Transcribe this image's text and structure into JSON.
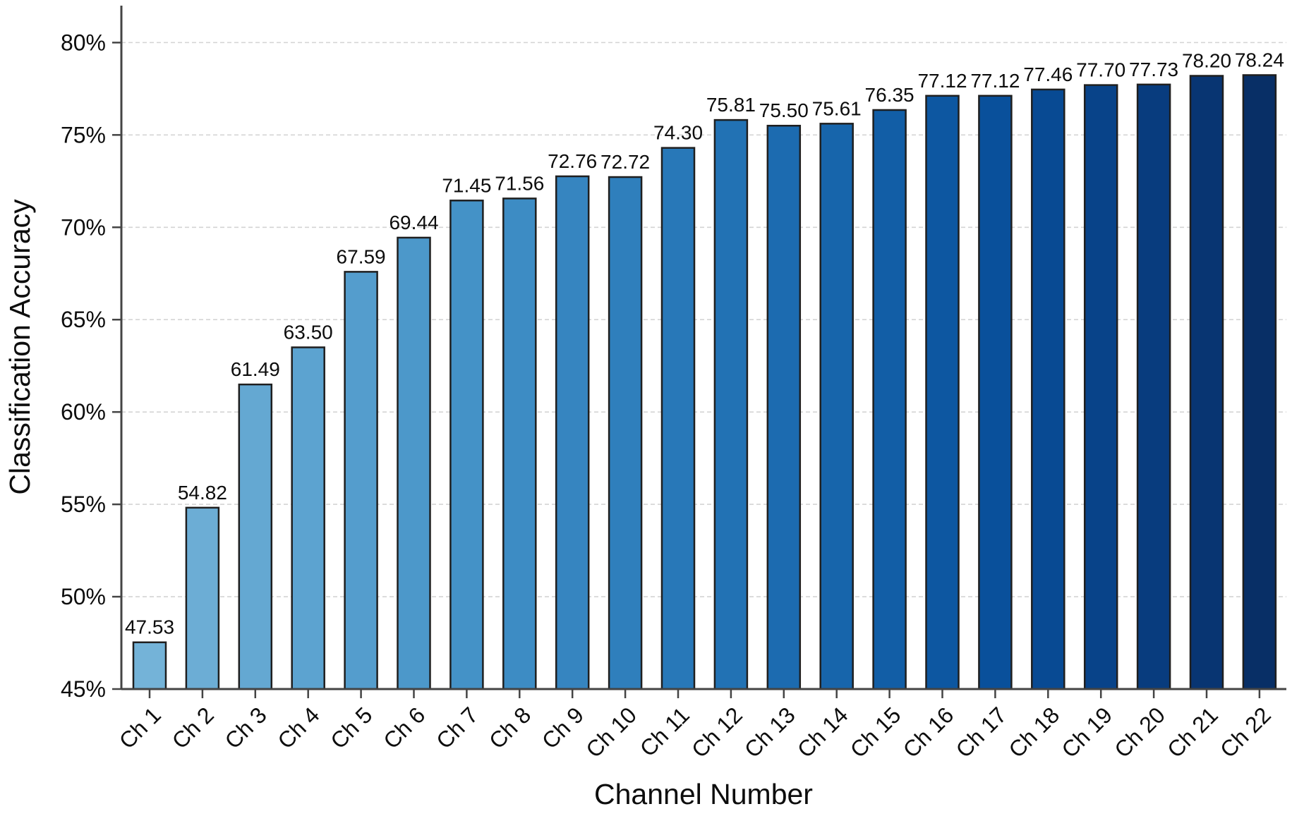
{
  "chart_data": {
    "type": "bar",
    "title": "",
    "xlabel": "Channel Number",
    "ylabel": "Classification Accuracy",
    "categories": [
      "Ch 1",
      "Ch 2",
      "Ch 3",
      "Ch 4",
      "Ch 5",
      "Ch 6",
      "Ch 7",
      "Ch 8",
      "Ch 9",
      "Ch 10",
      "Ch 11",
      "Ch 12",
      "Ch 13",
      "Ch 14",
      "Ch 15",
      "Ch 16",
      "Ch 17",
      "Ch 18",
      "Ch 19",
      "Ch 20",
      "Ch 21",
      "Ch 22"
    ],
    "values": [
      47.53,
      54.82,
      61.49,
      63.5,
      67.59,
      69.44,
      71.45,
      71.56,
      72.76,
      72.72,
      74.3,
      75.81,
      75.5,
      75.61,
      76.35,
      77.12,
      77.12,
      77.46,
      77.7,
      77.73,
      78.2,
      78.24
    ],
    "bar_labels": [
      "47.53",
      "54.82",
      "61.49",
      "63.50",
      "67.59",
      "69.44",
      "71.45",
      "71.56",
      "72.76",
      "72.72",
      "74.30",
      "75.81",
      "75.50",
      "75.61",
      "76.35",
      "77.12",
      "77.12",
      "77.46",
      "77.70",
      "77.73",
      "78.20",
      "78.24"
    ],
    "bar_colors": [
      "#74b3d8",
      "#6cadd5",
      "#64a8d2",
      "#5ca3d0",
      "#549dcd",
      "#4c98ca",
      "#4492c7",
      "#3d8cc4",
      "#3685c0",
      "#2f7fbc",
      "#2878b8",
      "#2272b4",
      "#1c6bb0",
      "#1765ab",
      "#125ea6",
      "#0d57a1",
      "#09509b",
      "#084a93",
      "#084389",
      "#083c7e",
      "#083572",
      "#082f66"
    ],
    "y_ticks": [
      45,
      50,
      55,
      60,
      65,
      70,
      75,
      80
    ],
    "y_tick_labels": [
      "45%",
      "50%",
      "55%",
      "60%",
      "65%",
      "70%",
      "75%",
      "80%"
    ],
    "ylim": [
      45,
      82
    ],
    "grid": "horizontal-dashed",
    "legend": "none",
    "colors": {
      "bar_edge": "#1f1f1f",
      "axis": "#444444",
      "grid": "#d4d4d4",
      "text": "#0d0d0d",
      "background": "#ffffff"
    }
  }
}
